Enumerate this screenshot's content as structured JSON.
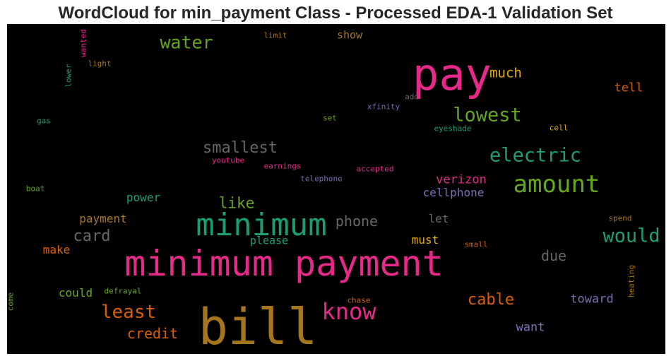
{
  "chart_data": {
    "type": "wordcloud",
    "title": "WordCloud for min_payment Class - Processed EDA-1 Validation Set",
    "background": "#000000",
    "words": [
      {
        "text": "minimum payment",
        "color": "#e7298a"
      },
      {
        "text": "bill",
        "color": "#a6761d"
      },
      {
        "text": "pay",
        "color": "#e7298a"
      },
      {
        "text": "minimum",
        "color": "#1b9e77"
      },
      {
        "text": "amount",
        "color": "#66a61e"
      },
      {
        "text": "know",
        "color": "#e7298a"
      },
      {
        "text": "lowest",
        "color": "#66a61e"
      },
      {
        "text": "electric",
        "color": "#1b9e77"
      },
      {
        "text": "would",
        "color": "#1b9e77"
      },
      {
        "text": "least",
        "color": "#d95f02"
      },
      {
        "text": "water",
        "color": "#66a61e"
      },
      {
        "text": "smallest",
        "color": "#666666"
      },
      {
        "text": "card",
        "color": "#666666"
      },
      {
        "text": "cable",
        "color": "#d95f02"
      },
      {
        "text": "like",
        "color": "#66a61e"
      },
      {
        "text": "much",
        "color": "#e6ab02"
      },
      {
        "text": "phone",
        "color": "#666666"
      },
      {
        "text": "credit",
        "color": "#d95f02"
      },
      {
        "text": "due",
        "color": "#666666"
      },
      {
        "text": "verizon",
        "color": "#e7298a"
      },
      {
        "text": "cellphone",
        "color": "#7570b3"
      },
      {
        "text": "tell",
        "color": "#d95f02"
      },
      {
        "text": "want",
        "color": "#7570b3"
      },
      {
        "text": "toward",
        "color": "#7570b3"
      },
      {
        "text": "payment",
        "color": "#a6761d"
      },
      {
        "text": "power",
        "color": "#1b9e77"
      },
      {
        "text": "make",
        "color": "#d95f02"
      },
      {
        "text": "could",
        "color": "#66a61e"
      },
      {
        "text": "please",
        "color": "#1b9e77"
      },
      {
        "text": "must",
        "color": "#e6ab02"
      },
      {
        "text": "let",
        "color": "#666666"
      },
      {
        "text": "show",
        "color": "#a6761d"
      },
      {
        "text": "telephone",
        "color": "#7570b3"
      },
      {
        "text": "earnings",
        "color": "#e7298a"
      },
      {
        "text": "accepted",
        "color": "#e7298a"
      },
      {
        "text": "youtube",
        "color": "#e7298a"
      },
      {
        "text": "xfinity",
        "color": "#7570b3"
      },
      {
        "text": "eyeshade",
        "color": "#1b9e77"
      },
      {
        "text": "cell",
        "color": "#e6ab02"
      },
      {
        "text": "add",
        "color": "#666666"
      },
      {
        "text": "set",
        "color": "#66a61e"
      },
      {
        "text": "limit",
        "color": "#a6761d"
      },
      {
        "text": "light",
        "color": "#a6761d"
      },
      {
        "text": "gas",
        "color": "#1b9e77"
      },
      {
        "text": "boat",
        "color": "#66a61e"
      },
      {
        "text": "defrayal",
        "color": "#66a61e"
      },
      {
        "text": "spend",
        "color": "#a6761d"
      },
      {
        "text": "small",
        "color": "#d95f02"
      },
      {
        "text": "chase",
        "color": "#d95f02"
      },
      {
        "text": "wanted",
        "color": "#e7298a"
      },
      {
        "text": "lower",
        "color": "#1b9e77"
      },
      {
        "text": "heating",
        "color": "#a6761d"
      },
      {
        "text": "come",
        "color": "#66a61e"
      }
    ]
  }
}
